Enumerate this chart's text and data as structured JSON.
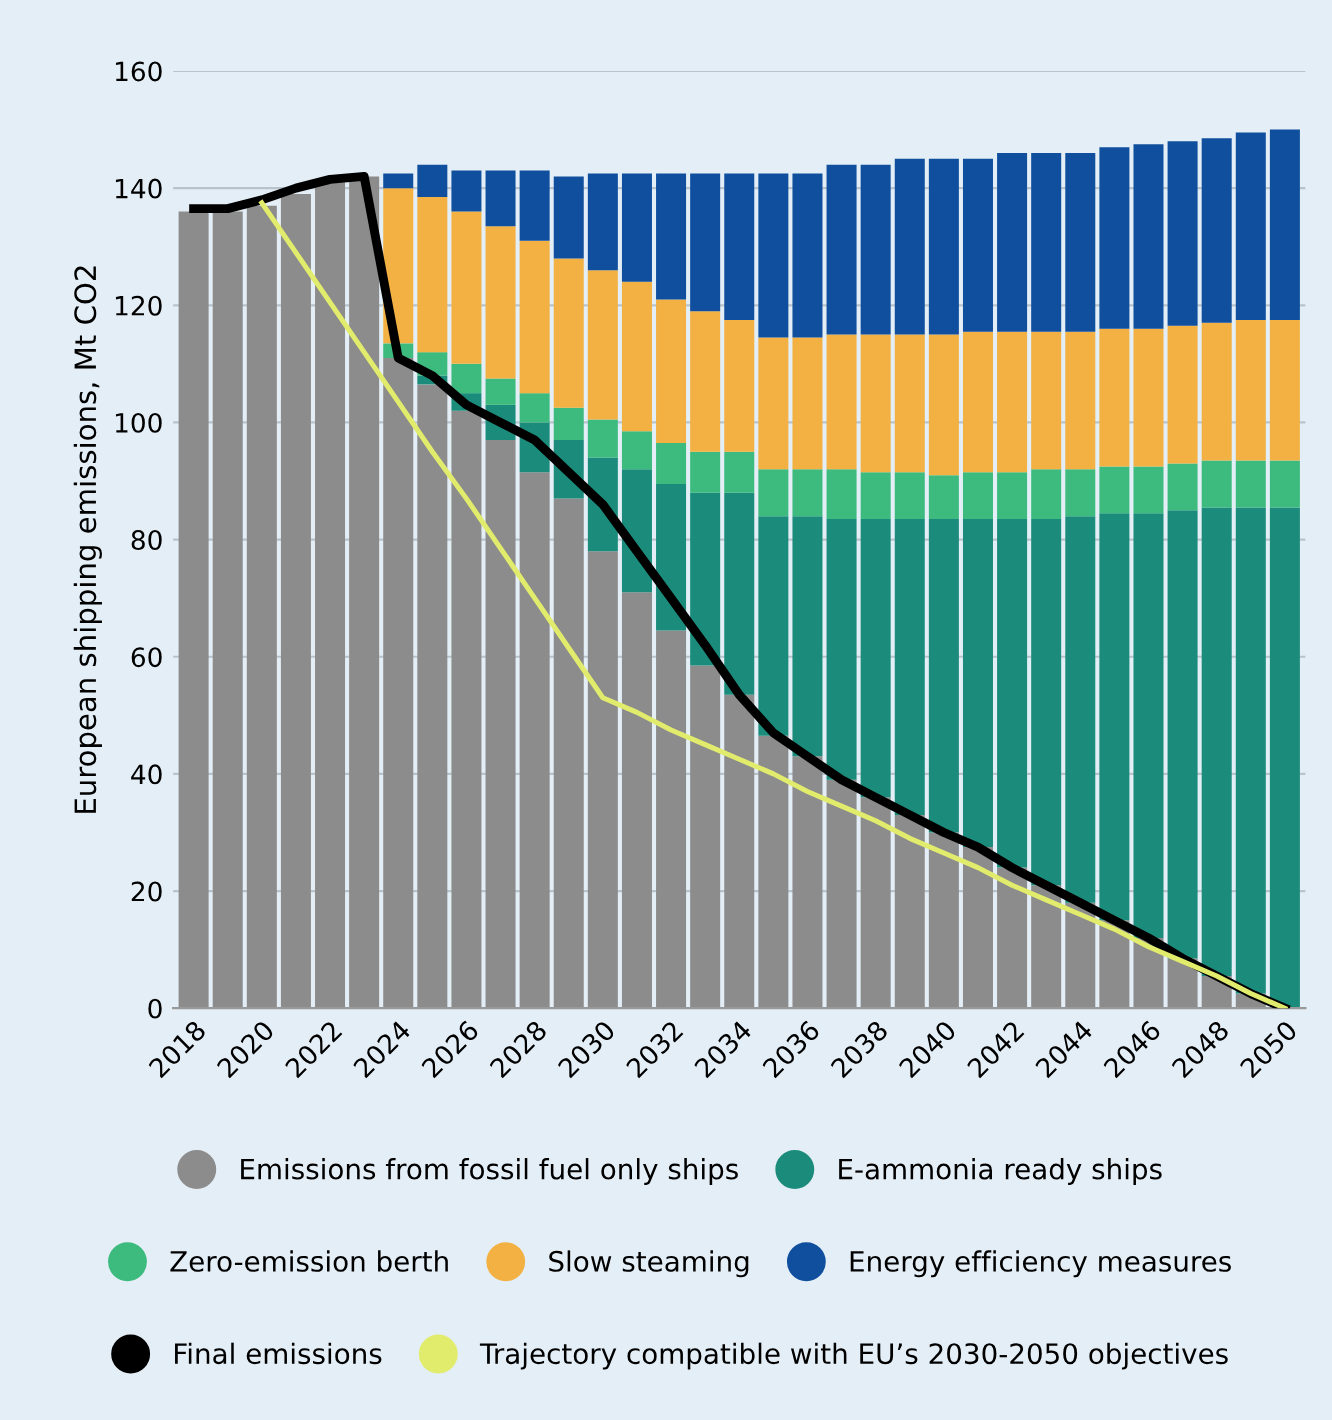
{
  "chart_data": {
    "type": "bar",
    "stacked": true,
    "ylabel": "European shipping emissions, Mt CO2",
    "categories": [
      "2018",
      null,
      "2020",
      null,
      "2022",
      null,
      "2024",
      null,
      "2026",
      null,
      "2028",
      null,
      "2030",
      null,
      "2032",
      null,
      "2034",
      null,
      "2036",
      null,
      "2038",
      null,
      "2040",
      null,
      "2042",
      null,
      "2044",
      null,
      "2046",
      null,
      "2048",
      null,
      "2050"
    ],
    "ylim": [
      0,
      160
    ],
    "yticks": [
      0,
      20,
      40,
      60,
      80,
      100,
      120,
      140,
      160
    ],
    "grid": "y",
    "legend": "bottom",
    "series": [
      {
        "name": "Emissions from fossil fuel only ships",
        "color": "#8c8c8c",
        "values": [
          136,
          136,
          137,
          139,
          141,
          142,
          111,
          106.5,
          102,
          97,
          91.5,
          87,
          78,
          71,
          64.5,
          58.5,
          53.5,
          46.5,
          43,
          39,
          36,
          33,
          30,
          27.5,
          24,
          21,
          18,
          15,
          12,
          8.5,
          5.5,
          2.5,
          0
        ]
      },
      {
        "name": "E-ammonia ready ships",
        "color": "#1b8c7b",
        "values": [
          0,
          0,
          0,
          0,
          0,
          0,
          0,
          1.5,
          3,
          6,
          8.5,
          10,
          16,
          21,
          25,
          29.5,
          34.5,
          37.5,
          41,
          44.5,
          47.5,
          50.5,
          53.5,
          56,
          59.5,
          62.5,
          66,
          69.5,
          72.5,
          76.5,
          80,
          83,
          85.5
        ]
      },
      {
        "name": "Zero-emission berth",
        "color": "#3dbb7e",
        "values": [
          0,
          0,
          0,
          0,
          0,
          0,
          2.5,
          4,
          5,
          4.5,
          5,
          5.5,
          6.5,
          6.5,
          7,
          7,
          7,
          8,
          8,
          8.5,
          8,
          8,
          7.5,
          8,
          8,
          8.5,
          8,
          8,
          8,
          8,
          8,
          8,
          8
        ]
      },
      {
        "name": "Slow steaming",
        "color": "#f2b142",
        "values": [
          0,
          0,
          0,
          0,
          0,
          0,
          26.5,
          26.5,
          26,
          26,
          26,
          25.5,
          25.5,
          25.5,
          24.5,
          24,
          22.5,
          22.5,
          22.5,
          23,
          23.5,
          23.5,
          24,
          24,
          24,
          23.5,
          23.5,
          23.5,
          23.5,
          23.5,
          23.5,
          24,
          24
        ]
      },
      {
        "name": "Energy efficiency measures",
        "color": "#0f4f9e",
        "values": [
          0,
          0,
          0,
          0,
          0,
          0,
          2.5,
          5.5,
          7,
          9.5,
          12,
          14,
          16.5,
          18.5,
          21.5,
          23.5,
          25,
          28,
          28,
          29,
          29,
          30,
          30,
          29.5,
          30.5,
          30.5,
          30.5,
          31,
          31.5,
          31.5,
          31.5,
          32,
          32.5
        ]
      },
      {
        "name": "Final emissions",
        "type": "line",
        "color": "#000000",
        "values": [
          136.5,
          136.5,
          138,
          140,
          141.5,
          142,
          111,
          108,
          103,
          100,
          97,
          91.5,
          86,
          78,
          70,
          62,
          53.5,
          47,
          43,
          39,
          36,
          33,
          30,
          27.5,
          24,
          21,
          18,
          15,
          12,
          8.5,
          5.5,
          2.5,
          0
        ]
      },
      {
        "name": "Trajectory compatible with EU’s 2030-2050 objectives",
        "type": "line",
        "color": "#e2ec6c",
        "values": [
          null,
          null,
          137.5,
          129,
          120.5,
          112,
          103.5,
          95,
          87,
          78.5,
          70,
          61.5,
          53,
          50.5,
          47.5,
          45,
          42.5,
          40,
          37,
          34.5,
          32,
          29,
          26.5,
          24,
          21,
          18.5,
          16,
          13.5,
          10.5,
          8,
          5.5,
          2.5,
          0
        ]
      }
    ]
  }
}
